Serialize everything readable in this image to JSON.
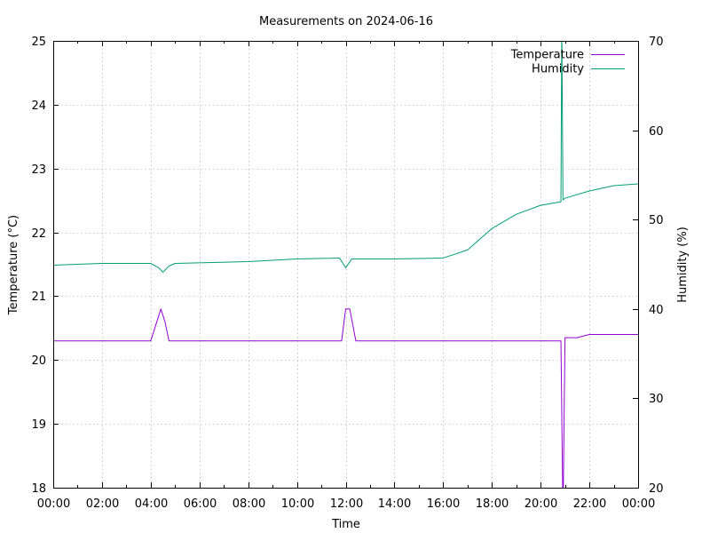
{
  "chart_data": {
    "type": "line",
    "title": "Measurements on 2024-06-16",
    "xlabel": "Time",
    "ylabel_left": "Temperature (°C)",
    "ylabel_right": "Humidity (%)",
    "x_range": [
      "00:00",
      "24:00"
    ],
    "x_ticks": [
      "00:00",
      "02:00",
      "04:00",
      "06:00",
      "08:00",
      "10:00",
      "12:00",
      "14:00",
      "16:00",
      "18:00",
      "20:00",
      "22:00",
      "00:00"
    ],
    "ylim_left": [
      18,
      25
    ],
    "y_ticks_left": [
      "18",
      "19",
      "20",
      "21",
      "22",
      "23",
      "24",
      "25"
    ],
    "ylim_right": [
      20,
      70
    ],
    "y_ticks_right": [
      "20",
      "30",
      "40",
      "50",
      "60",
      "70"
    ],
    "grid": true,
    "legend_position": "top-right",
    "series": [
      {
        "name": "Temperature",
        "axis": "left",
        "color": "#9400d3",
        "x": [
          "00:00",
          "01:00",
          "02:00",
          "03:00",
          "04:00",
          "04:15",
          "04:25",
          "04:35",
          "04:45",
          "05:00",
          "06:00",
          "07:00",
          "08:00",
          "09:00",
          "10:00",
          "11:00",
          "11:50",
          "12:00",
          "12:10",
          "12:25",
          "13:00",
          "14:00",
          "15:00",
          "16:00",
          "17:00",
          "18:00",
          "19:00",
          "20:00",
          "20:50",
          "20:55",
          "21:00",
          "21:30",
          "22:00",
          "23:00",
          "24:00"
        ],
        "values": [
          20.3,
          20.3,
          20.3,
          20.3,
          20.3,
          20.6,
          20.8,
          20.6,
          20.3,
          20.3,
          20.3,
          20.3,
          20.3,
          20.3,
          20.3,
          20.3,
          20.3,
          20.8,
          20.8,
          20.3,
          20.3,
          20.3,
          20.3,
          20.3,
          20.3,
          20.3,
          20.3,
          20.3,
          20.3,
          17.5,
          20.35,
          20.35,
          20.4,
          20.4,
          20.4
        ]
      },
      {
        "name": "Humidity",
        "axis": "right",
        "color": "#009e73",
        "x": [
          "00:00",
          "02:00",
          "04:00",
          "04:20",
          "04:30",
          "04:45",
          "05:00",
          "08:00",
          "10:00",
          "11:45",
          "12:00",
          "12:15",
          "14:00",
          "16:00",
          "17:00",
          "18:00",
          "19:00",
          "20:00",
          "20:50",
          "20:52",
          "20:55",
          "21:00",
          "22:00",
          "23:00",
          "24:00"
        ],
        "values": [
          44.9,
          45.1,
          45.1,
          44.6,
          44.1,
          44.8,
          45.1,
          45.3,
          45.6,
          45.7,
          44.6,
          45.6,
          45.6,
          45.7,
          46.6,
          49.0,
          50.6,
          51.6,
          52.0,
          72.0,
          52.2,
          52.4,
          53.2,
          53.8,
          54.0
        ]
      }
    ]
  }
}
